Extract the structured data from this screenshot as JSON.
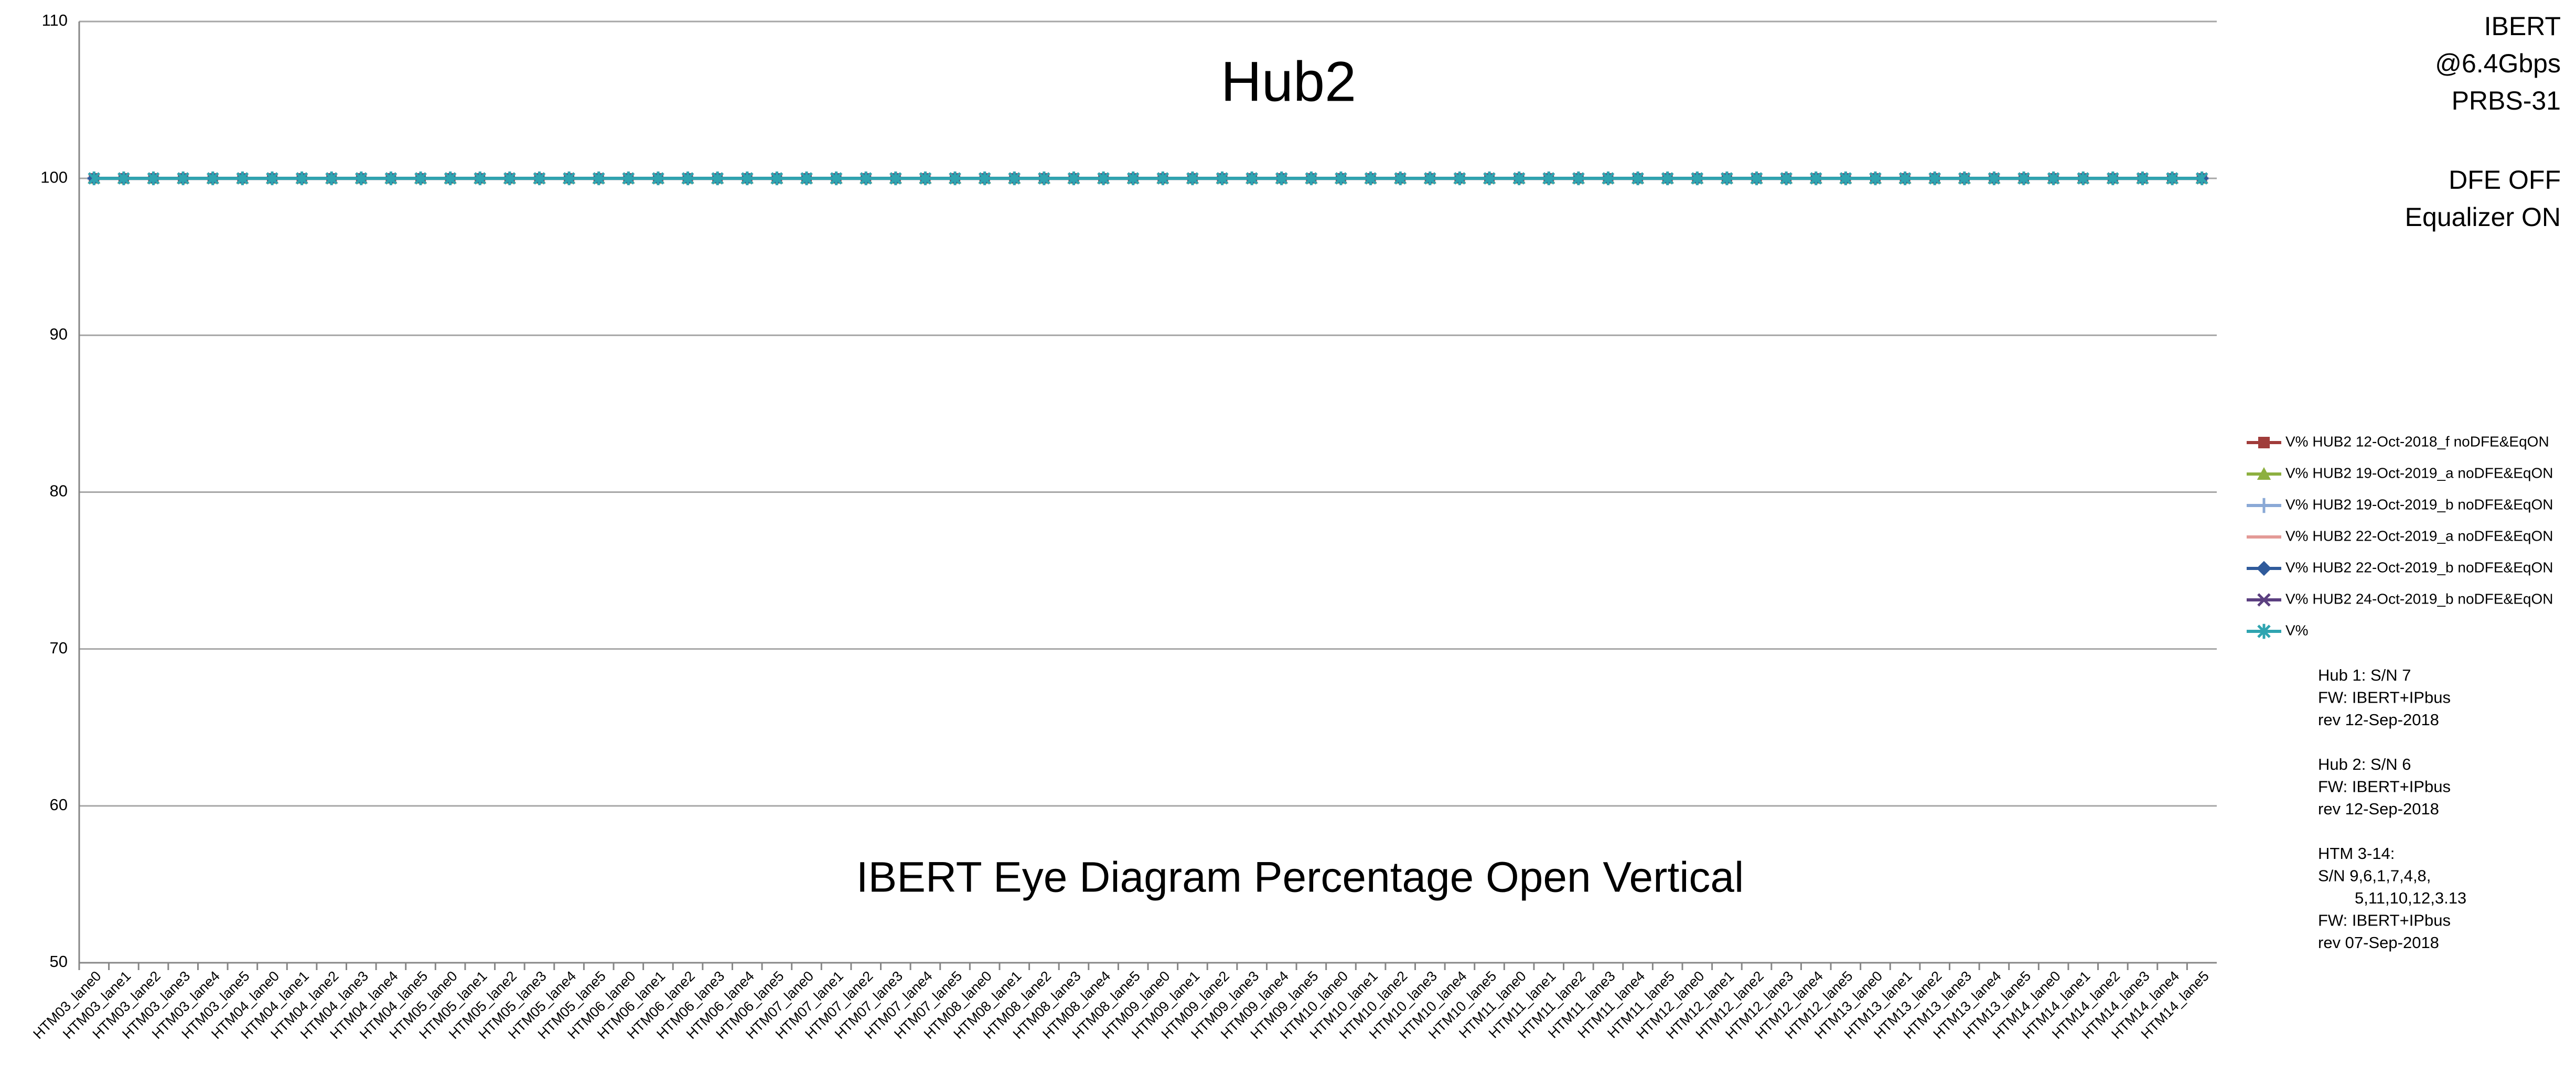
{
  "chart_data": {
    "type": "line",
    "title": "Hub2",
    "subtitle": "IBERT Eye Diagram Percentage Open Vertical",
    "info_top": [
      [
        "IBERT",
        "@6.4Gbps",
        "PRBS-31"
      ],
      [
        "DFE OFF",
        "Equalizer ON"
      ]
    ],
    "notes": [
      [
        "Hub 1:  S/N 7",
        "FW: IBERT+IPbus",
        "rev 12-Sep-2018"
      ],
      [
        "Hub 2:  S/N 6",
        "FW: IBERT+IPbus",
        "rev 12-Sep-2018"
      ],
      [
        "HTM 3-14:",
        "S/N  9,6,1,7,4,8,",
        "5,11,10,12,3.13",
        "FW: IBERT+IPbus",
        "rev 07-Sep-2018"
      ]
    ],
    "categories": [
      "HTM03_lane0",
      "HTM03_lane1",
      "HTM03_lane2",
      "HTM03_lane3",
      "HTM03_lane4",
      "HTM03_lane5",
      "HTM04_lane0",
      "HTM04_lane1",
      "HTM04_lane2",
      "HTM04_lane3",
      "HTM04_lane4",
      "HTM04_lane5",
      "HTM05_lane0",
      "HTM05_lane1",
      "HTM05_lane2",
      "HTM05_lane3",
      "HTM05_lane4",
      "HTM05_lane5",
      "HTM06_lane0",
      "HTM06_lane1",
      "HTM06_lane2",
      "HTM06_lane3",
      "HTM06_lane4",
      "HTM06_lane5",
      "HTM07_lane0",
      "HTM07_lane1",
      "HTM07_lane2",
      "HTM07_lane3",
      "HTM07_lane4",
      "HTM07_lane5",
      "HTM08_lane0",
      "HTM08_lane1",
      "HTM08_lane2",
      "HTM08_lane3",
      "HTM08_lane4",
      "HTM08_lane5",
      "HTM09_lane0",
      "HTM09_lane1",
      "HTM09_lane2",
      "HTM09_lane3",
      "HTM09_lane4",
      "HTM09_lane5",
      "HTM10_lane0",
      "HTM10_lane1",
      "HTM10_lane2",
      "HTM10_lane3",
      "HTM10_lane4",
      "HTM10_lane5",
      "HTM11_lane0",
      "HTM11_lane1",
      "HTM11_lane2",
      "HTM11_lane3",
      "HTM11_lane4",
      "HTM11_lane5",
      "HTM12_lane0",
      "HTM12_lane1",
      "HTM12_lane2",
      "HTM12_lane3",
      "HTM12_lane4",
      "HTM12_lane5",
      "HTM13_lane0",
      "HTM13_lane1",
      "HTM13_lane2",
      "HTM13_lane3",
      "HTM13_lane4",
      "HTM13_lane5",
      "HTM14_lane0",
      "HTM14_lane1",
      "HTM14_lane2",
      "HTM14_lane3",
      "HTM14_lane4",
      "HTM14_lane5"
    ],
    "series": [
      {
        "name": "V% HUB2 12-Oct-2018_f noDFE&EqON",
        "color": "#a03c3a",
        "marker": "square",
        "values": [
          100,
          100,
          100,
          100,
          100,
          100,
          100,
          100,
          100,
          100,
          100,
          100,
          100,
          100,
          100,
          100,
          100,
          100,
          100,
          100,
          100,
          100,
          100,
          100,
          100,
          100,
          100,
          100,
          100,
          100,
          100,
          100,
          100,
          100,
          100,
          100,
          100,
          100,
          100,
          100,
          100,
          100,
          100,
          100,
          100,
          100,
          100,
          100,
          100,
          100,
          100,
          100,
          100,
          100,
          100,
          100,
          100,
          100,
          100,
          100,
          100,
          100,
          100,
          100,
          100,
          100,
          100,
          100,
          100,
          100,
          100,
          100
        ]
      },
      {
        "name": "V% HUB2 19-Oct-2019_a noDFE&EqON",
        "color": "#8db040",
        "marker": "triangle",
        "values": [
          100,
          100,
          100,
          100,
          100,
          100,
          100,
          100,
          100,
          100,
          100,
          100,
          100,
          100,
          100,
          100,
          100,
          100,
          100,
          100,
          100,
          100,
          100,
          100,
          100,
          100,
          100,
          100,
          100,
          100,
          100,
          100,
          100,
          100,
          100,
          100,
          100,
          100,
          100,
          100,
          100,
          100,
          100,
          100,
          100,
          100,
          100,
          100,
          100,
          100,
          100,
          100,
          100,
          100,
          100,
          100,
          100,
          100,
          100,
          100,
          100,
          100,
          100,
          100,
          100,
          100,
          100,
          100,
          100,
          100,
          100,
          100
        ]
      },
      {
        "name": "V% HUB2 19-Oct-2019_b noDFE&EqON",
        "color": "#8aa9d6",
        "marker": "plus",
        "values": [
          100,
          100,
          100,
          100,
          100,
          100,
          100,
          100,
          100,
          100,
          100,
          100,
          100,
          100,
          100,
          100,
          100,
          100,
          100,
          100,
          100,
          100,
          100,
          100,
          100,
          100,
          100,
          100,
          100,
          100,
          100,
          100,
          100,
          100,
          100,
          100,
          100,
          100,
          100,
          100,
          100,
          100,
          100,
          100,
          100,
          100,
          100,
          100,
          100,
          100,
          100,
          100,
          100,
          100,
          100,
          100,
          100,
          100,
          100,
          100,
          100,
          100,
          100,
          100,
          100,
          100,
          100,
          100,
          100,
          100,
          100,
          100
        ]
      },
      {
        "name": "V% HUB2 22-Oct-2019_a noDFE&EqON",
        "color": "#e39a96",
        "marker": "none",
        "values": [
          100,
          100,
          100,
          100,
          100,
          100,
          100,
          100,
          100,
          100,
          100,
          100,
          100,
          100,
          100,
          100,
          100,
          100,
          100,
          100,
          100,
          100,
          100,
          100,
          100,
          100,
          100,
          100,
          100,
          100,
          100,
          100,
          100,
          100,
          100,
          100,
          100,
          100,
          100,
          100,
          100,
          100,
          100,
          100,
          100,
          100,
          100,
          100,
          100,
          100,
          100,
          100,
          100,
          100,
          100,
          100,
          100,
          100,
          100,
          100,
          100,
          100,
          100,
          100,
          100,
          100,
          100,
          100,
          100,
          100,
          100,
          100
        ]
      },
      {
        "name": "V% HUB2 22-Oct-2019_b noDFE&EqON",
        "color": "#2f5a9b",
        "marker": "diamond",
        "values": [
          100,
          100,
          100,
          100,
          100,
          100,
          100,
          100,
          100,
          100,
          100,
          100,
          100,
          100,
          100,
          100,
          100,
          100,
          100,
          100,
          100,
          100,
          100,
          100,
          100,
          100,
          100,
          100,
          100,
          100,
          100,
          100,
          100,
          100,
          100,
          100,
          100,
          100,
          100,
          100,
          100,
          100,
          100,
          100,
          100,
          100,
          100,
          100,
          100,
          100,
          100,
          100,
          100,
          100,
          100,
          100,
          100,
          100,
          100,
          100,
          100,
          100,
          100,
          100,
          100,
          100,
          100,
          100,
          100,
          100,
          100,
          100
        ]
      },
      {
        "name": "V% HUB2 24-Oct-2019_b noDFE&EqON",
        "color": "#5b3f80",
        "marker": "x",
        "values": [
          100,
          100,
          100,
          100,
          100,
          100,
          100,
          100,
          100,
          100,
          100,
          100,
          100,
          100,
          100,
          100,
          100,
          100,
          100,
          100,
          100,
          100,
          100,
          100,
          100,
          100,
          100,
          100,
          100,
          100,
          100,
          100,
          100,
          100,
          100,
          100,
          100,
          100,
          100,
          100,
          100,
          100,
          100,
          100,
          100,
          100,
          100,
          100,
          100,
          100,
          100,
          100,
          100,
          100,
          100,
          100,
          100,
          100,
          100,
          100,
          100,
          100,
          100,
          100,
          100,
          100,
          100,
          100,
          100,
          100,
          100,
          100
        ]
      },
      {
        "name": "V%",
        "color": "#2fa4b0",
        "marker": "star",
        "values": [
          100,
          100,
          100,
          100,
          100,
          100,
          100,
          100,
          100,
          100,
          100,
          100,
          100,
          100,
          100,
          100,
          100,
          100,
          100,
          100,
          100,
          100,
          100,
          100,
          100,
          100,
          100,
          100,
          100,
          100,
          100,
          100,
          100,
          100,
          100,
          100,
          100,
          100,
          100,
          100,
          100,
          100,
          100,
          100,
          100,
          100,
          100,
          100,
          100,
          100,
          100,
          100,
          100,
          100,
          100,
          100,
          100,
          100,
          100,
          100,
          100,
          100,
          100,
          100,
          100,
          100,
          100,
          100,
          100,
          100,
          100,
          100
        ]
      }
    ],
    "ylim": [
      50,
      110
    ],
    "yticks": [
      50,
      60,
      70,
      80,
      90,
      100,
      110
    ],
    "grid": true,
    "legend": "right"
  }
}
